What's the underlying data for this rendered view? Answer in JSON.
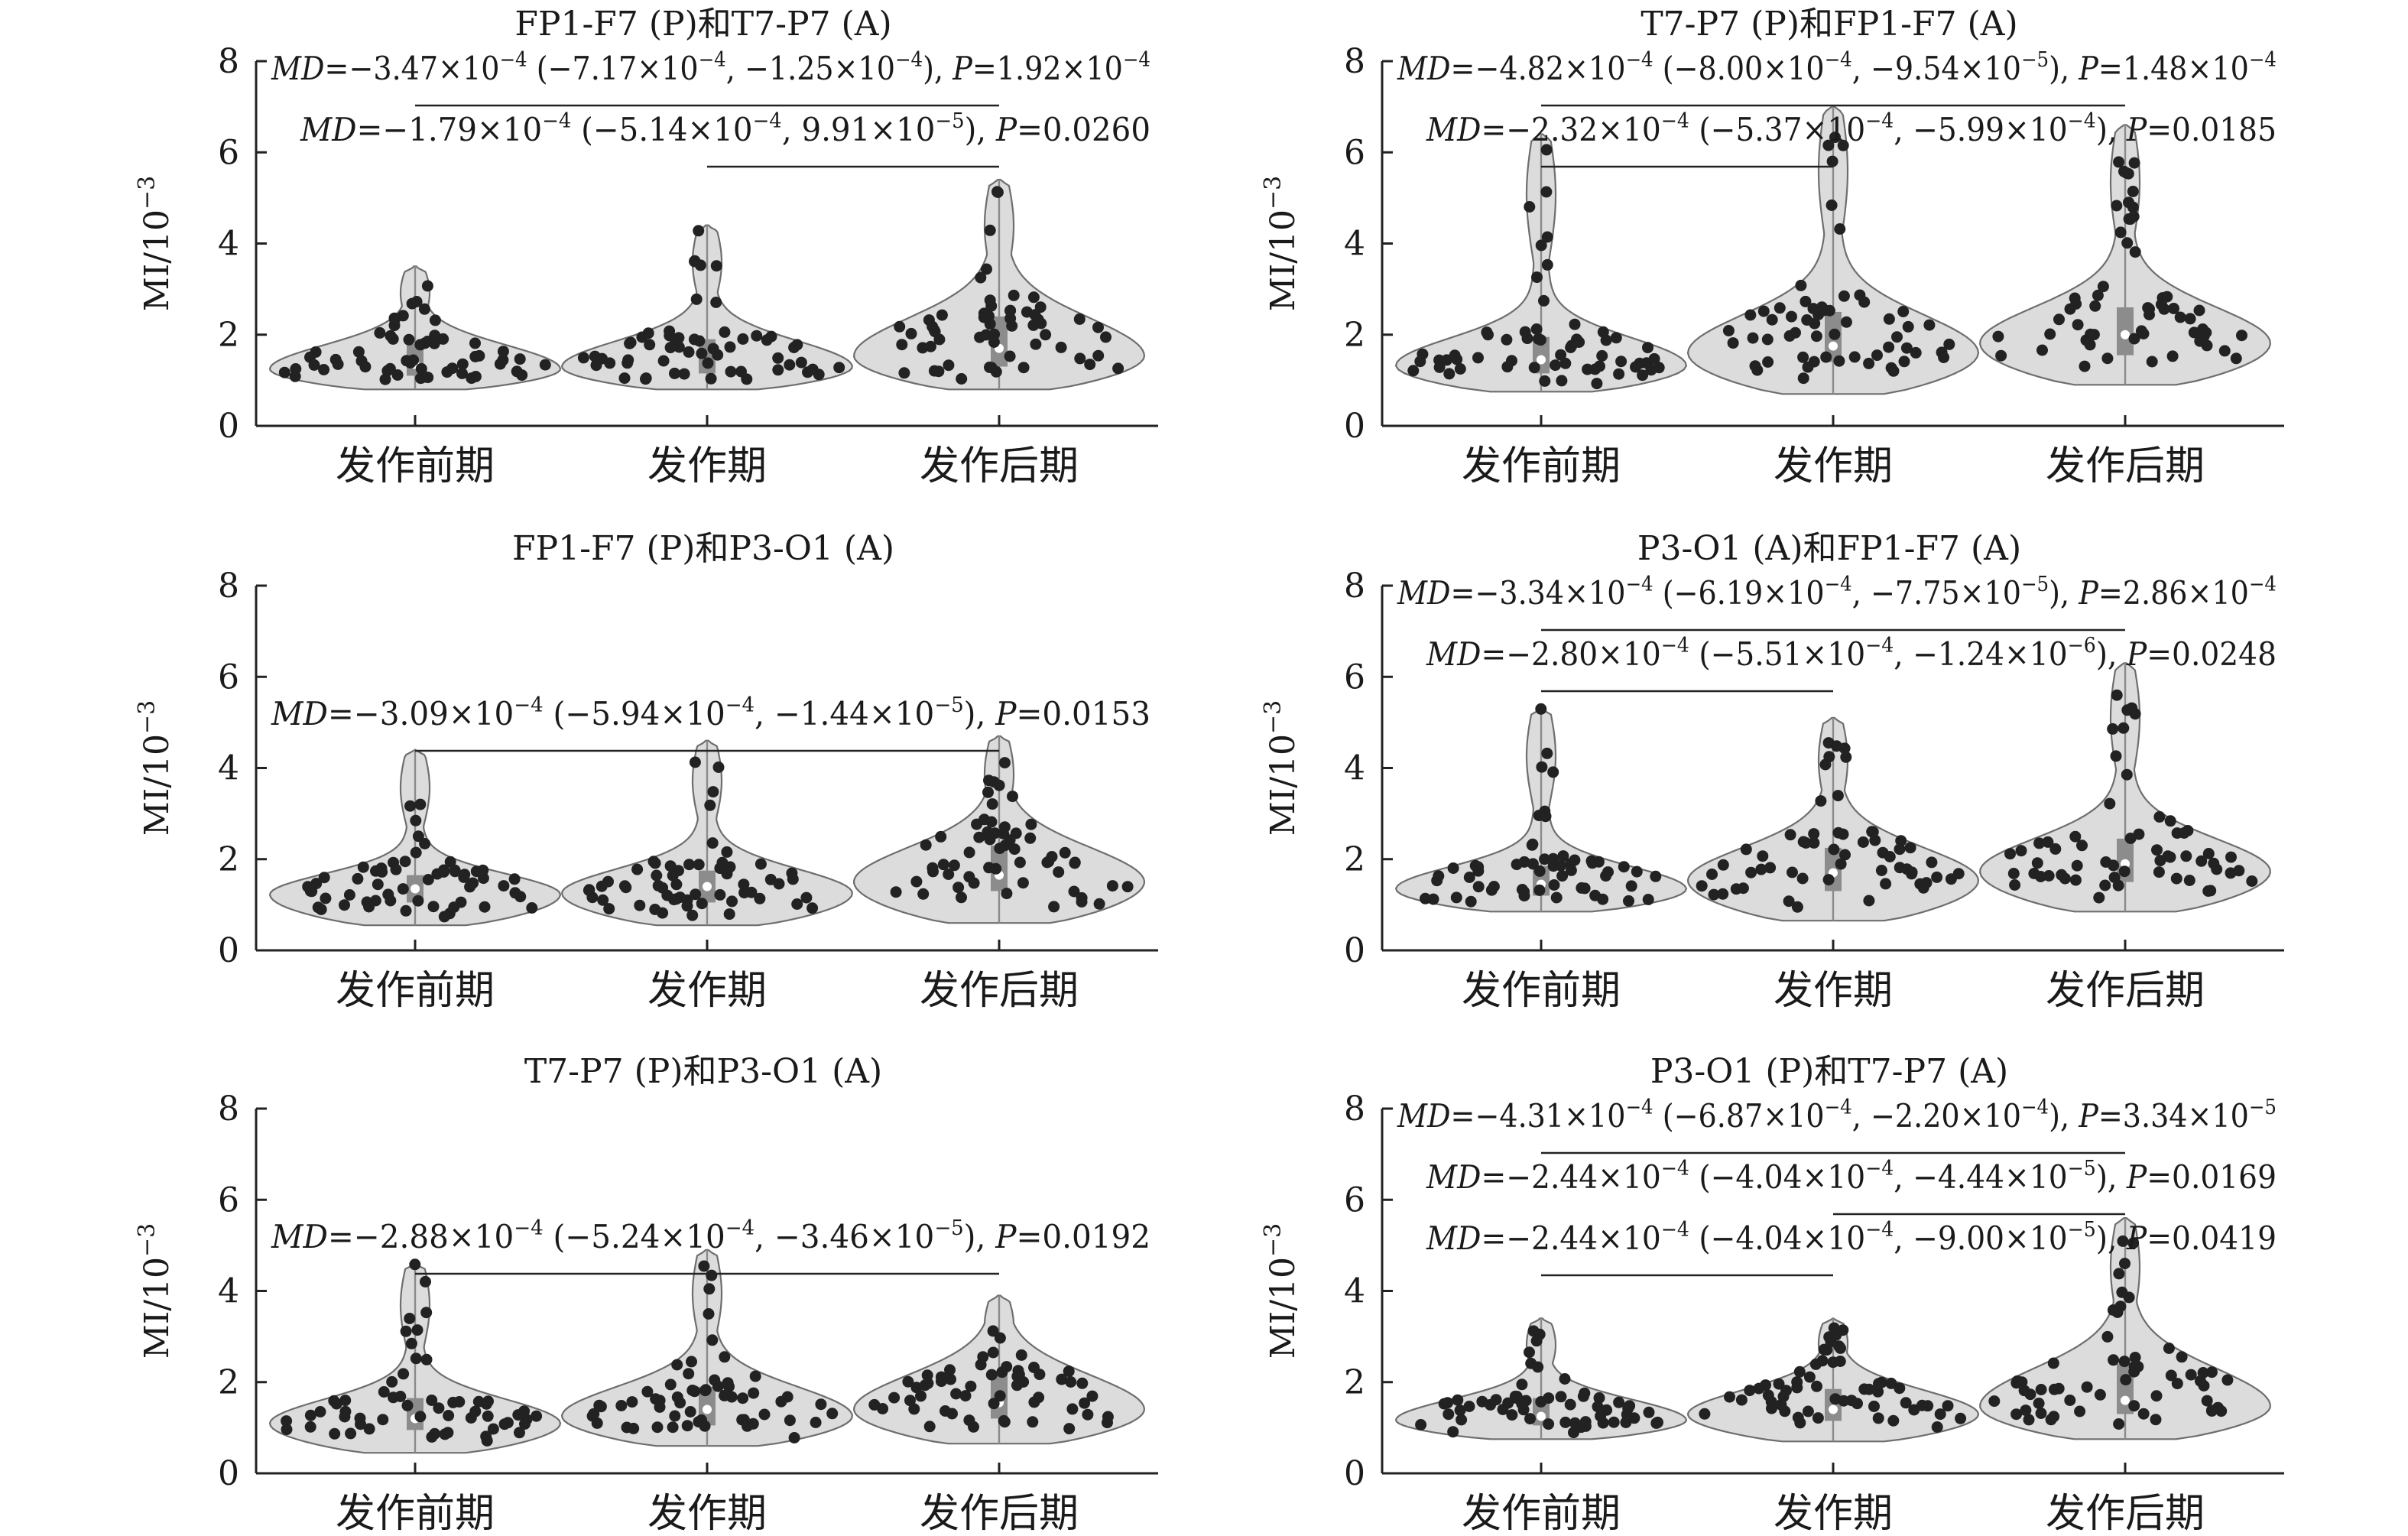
{
  "chart_data": [
    {
      "type": "violin",
      "title": "FP1-F7 (P)和T7-P7 (A)",
      "ylabel": "MI/10",
      "ylabel_exp": "−3",
      "ylim": [
        0,
        8
      ],
      "yticks": [
        "0",
        "2",
        "4",
        "6",
        "8"
      ],
      "categories": [
        "发作前期",
        "发作期",
        "发作后期"
      ],
      "groups": [
        {
          "min": 0.8,
          "q1": 1.1,
          "median": 1.35,
          "q3": 1.8,
          "max": 3.5
        },
        {
          "min": 0.8,
          "q1": 1.15,
          "median": 1.4,
          "q3": 1.9,
          "max": 4.4
        },
        {
          "min": 0.8,
          "q1": 1.3,
          "median": 1.7,
          "q3": 2.4,
          "max": 5.4
        }
      ],
      "comparisons": [
        {
          "groups": [
            0,
            2
          ],
          "md": "−3.47×10",
          "md_exp": "−4",
          "ci_a": "(−7.17×10",
          "ci_a_exp": "−4",
          "ci_b": ", −1.25×10",
          "ci_b_exp": "−4",
          "p": "1.92×10",
          "p_exp": "−4"
        },
        {
          "groups": [
            1,
            2
          ],
          "md": "−1.79×10",
          "md_exp": "−4",
          "ci_a": "(−5.14×10",
          "ci_a_exp": "−4",
          "ci_b": ", 9.91×10",
          "ci_b_exp": "−5",
          "p": "0.0260",
          "p_exp": ""
        }
      ]
    },
    {
      "type": "violin",
      "title": "T7-P7 (P)和FP1-F7 (A)",
      "ylabel": "MI/10",
      "ylabel_exp": "−3",
      "ylim": [
        0,
        8
      ],
      "yticks": [
        "0",
        "2",
        "4",
        "6",
        "8"
      ],
      "categories": [
        "发作前期",
        "发作期",
        "发作后期"
      ],
      "groups": [
        {
          "min": 0.75,
          "q1": 1.15,
          "median": 1.45,
          "q3": 1.95,
          "max": 6.4
        },
        {
          "min": 0.7,
          "q1": 1.4,
          "median": 1.75,
          "q3": 2.5,
          "max": 7.0
        },
        {
          "min": 0.9,
          "q1": 1.55,
          "median": 2.0,
          "q3": 2.6,
          "max": 6.6
        }
      ],
      "comparisons": [
        {
          "groups": [
            0,
            2
          ],
          "md": "−4.82×10",
          "md_exp": "−4",
          "ci_a": "(−8.00×10",
          "ci_a_exp": "−4",
          "ci_b": ", −9.54×10",
          "ci_b_exp": "−5",
          "p": "1.48×10",
          "p_exp": "−4"
        },
        {
          "groups": [
            0,
            1
          ],
          "md": "−2.32×10",
          "md_exp": "−4",
          "ci_a": "(−5.37×10",
          "ci_a_exp": "−4",
          "ci_b": ", −5.99×10",
          "ci_b_exp": "−4",
          "p": "0.0185",
          "p_exp": ""
        }
      ]
    },
    {
      "type": "violin",
      "title": "FP1-F7 (P)和P3-O1 (A)",
      "ylabel": "MI/10",
      "ylabel_exp": "−3",
      "ylim": [
        0,
        8
      ],
      "yticks": [
        "0",
        "2",
        "4",
        "6",
        "8"
      ],
      "categories": [
        "发作前期",
        "发作期",
        "发作后期"
      ],
      "groups": [
        {
          "min": 0.55,
          "q1": 1.05,
          "median": 1.35,
          "q3": 1.65,
          "max": 4.4
        },
        {
          "min": 0.55,
          "q1": 1.05,
          "median": 1.4,
          "q3": 1.75,
          "max": 4.6
        },
        {
          "min": 0.6,
          "q1": 1.3,
          "median": 1.65,
          "q3": 2.3,
          "max": 4.7
        }
      ],
      "comparisons": [
        {
          "groups": [
            0,
            2
          ],
          "md": "−3.09×10",
          "md_exp": "−4",
          "ci_a": "(−5.94×10",
          "ci_a_exp": "−4",
          "ci_b": ", −1.44×10",
          "ci_b_exp": "−5",
          "p": "0.0153",
          "p_exp": ""
        }
      ]
    },
    {
      "type": "violin",
      "title": "P3-O1 (A)和FP1-F7 (A)",
      "ylabel": "MI/10",
      "ylabel_exp": "−3",
      "ylim": [
        0,
        8
      ],
      "yticks": [
        "0",
        "2",
        "4",
        "6",
        "8"
      ],
      "categories": [
        "发作前期",
        "发作期",
        "发作后期"
      ],
      "groups": [
        {
          "min": 0.85,
          "q1": 1.2,
          "median": 1.45,
          "q3": 1.85,
          "max": 5.3
        },
        {
          "min": 0.65,
          "q1": 1.3,
          "median": 1.7,
          "q3": 2.25,
          "max": 5.1
        },
        {
          "min": 0.85,
          "q1": 1.5,
          "median": 1.9,
          "q3": 2.45,
          "max": 6.3
        }
      ],
      "comparisons": [
        {
          "groups": [
            0,
            2
          ],
          "md": "−3.34×10",
          "md_exp": "−4",
          "ci_a": "(−6.19×10",
          "ci_a_exp": "−4",
          "ci_b": ", −7.75×10",
          "ci_b_exp": "−5",
          "p": "2.86×10",
          "p_exp": "−4"
        },
        {
          "groups": [
            0,
            1
          ],
          "md": "−2.80×10",
          "md_exp": "−4",
          "ci_a": "(−5.51×10",
          "ci_a_exp": "−4",
          "ci_b": ", −1.24×10",
          "ci_b_exp": "−6",
          "p": "0.0248",
          "p_exp": ""
        }
      ]
    },
    {
      "type": "violin",
      "title": "T7-P7 (P)和P3-O1 (A)",
      "ylabel": "MI/10",
      "ylabel_exp": "−3",
      "ylim": [
        0,
        8
      ],
      "yticks": [
        "0",
        "2",
        "4",
        "6",
        "8"
      ],
      "categories": [
        "发作前期",
        "发作期",
        "发作后期"
      ],
      "groups": [
        {
          "min": 0.45,
          "q1": 0.95,
          "median": 1.2,
          "q3": 1.65,
          "max": 4.6
        },
        {
          "min": 0.6,
          "q1": 1.05,
          "median": 1.4,
          "q3": 1.9,
          "max": 4.9
        },
        {
          "min": 0.65,
          "q1": 1.2,
          "median": 1.55,
          "q3": 2.2,
          "max": 3.9
        }
      ],
      "comparisons": [
        {
          "groups": [
            0,
            2
          ],
          "md": "−2.88×10",
          "md_exp": "−4",
          "ci_a": "(−5.24×10",
          "ci_a_exp": "−4",
          "ci_b": ", −3.46×10",
          "ci_b_exp": "−5",
          "p": "0.0192",
          "p_exp": ""
        }
      ]
    },
    {
      "type": "violin",
      "title": "P3-O1 (P)和T7-P7 (A)",
      "ylabel": "MI/10",
      "ylabel_exp": "−3",
      "ylim": [
        0,
        8
      ],
      "yticks": [
        "0",
        "2",
        "4",
        "6",
        "8"
      ],
      "categories": [
        "发作前期",
        "发作期",
        "发作后期"
      ],
      "groups": [
        {
          "min": 0.75,
          "q1": 1.05,
          "median": 1.25,
          "q3": 1.65,
          "max": 3.4
        },
        {
          "min": 0.7,
          "q1": 1.15,
          "median": 1.4,
          "q3": 1.85,
          "max": 3.4
        },
        {
          "min": 0.75,
          "q1": 1.3,
          "median": 1.6,
          "q3": 2.4,
          "max": 5.6
        }
      ],
      "comparisons": [
        {
          "groups": [
            0,
            2
          ],
          "md": "−4.31×10",
          "md_exp": "−4",
          "ci_a": "(−6.87×10",
          "ci_a_exp": "−4",
          "ci_b": ", −2.20×10",
          "ci_b_exp": "−4",
          "p": "3.34×10",
          "p_exp": "−5"
        },
        {
          "groups": [
            1,
            2
          ],
          "md": "−2.44×10",
          "md_exp": "−4",
          "ci_a": "(−4.04×10",
          "ci_a_exp": "−4",
          "ci_b": ", −4.44×10",
          "ci_b_exp": "−5",
          "p": "0.0169",
          "p_exp": ""
        },
        {
          "groups": [
            0,
            1
          ],
          "md": "−2.44×10",
          "md_exp": "−4",
          "ci_a": "(−4.04×10",
          "ci_a_exp": "−4",
          "ci_b": ", −9.00×10",
          "ci_b_exp": "−5",
          "p": "0.0419",
          "p_exp": ""
        }
      ]
    }
  ],
  "labels": {
    "md_prefix": "MD",
    "p_prefix": "P"
  }
}
